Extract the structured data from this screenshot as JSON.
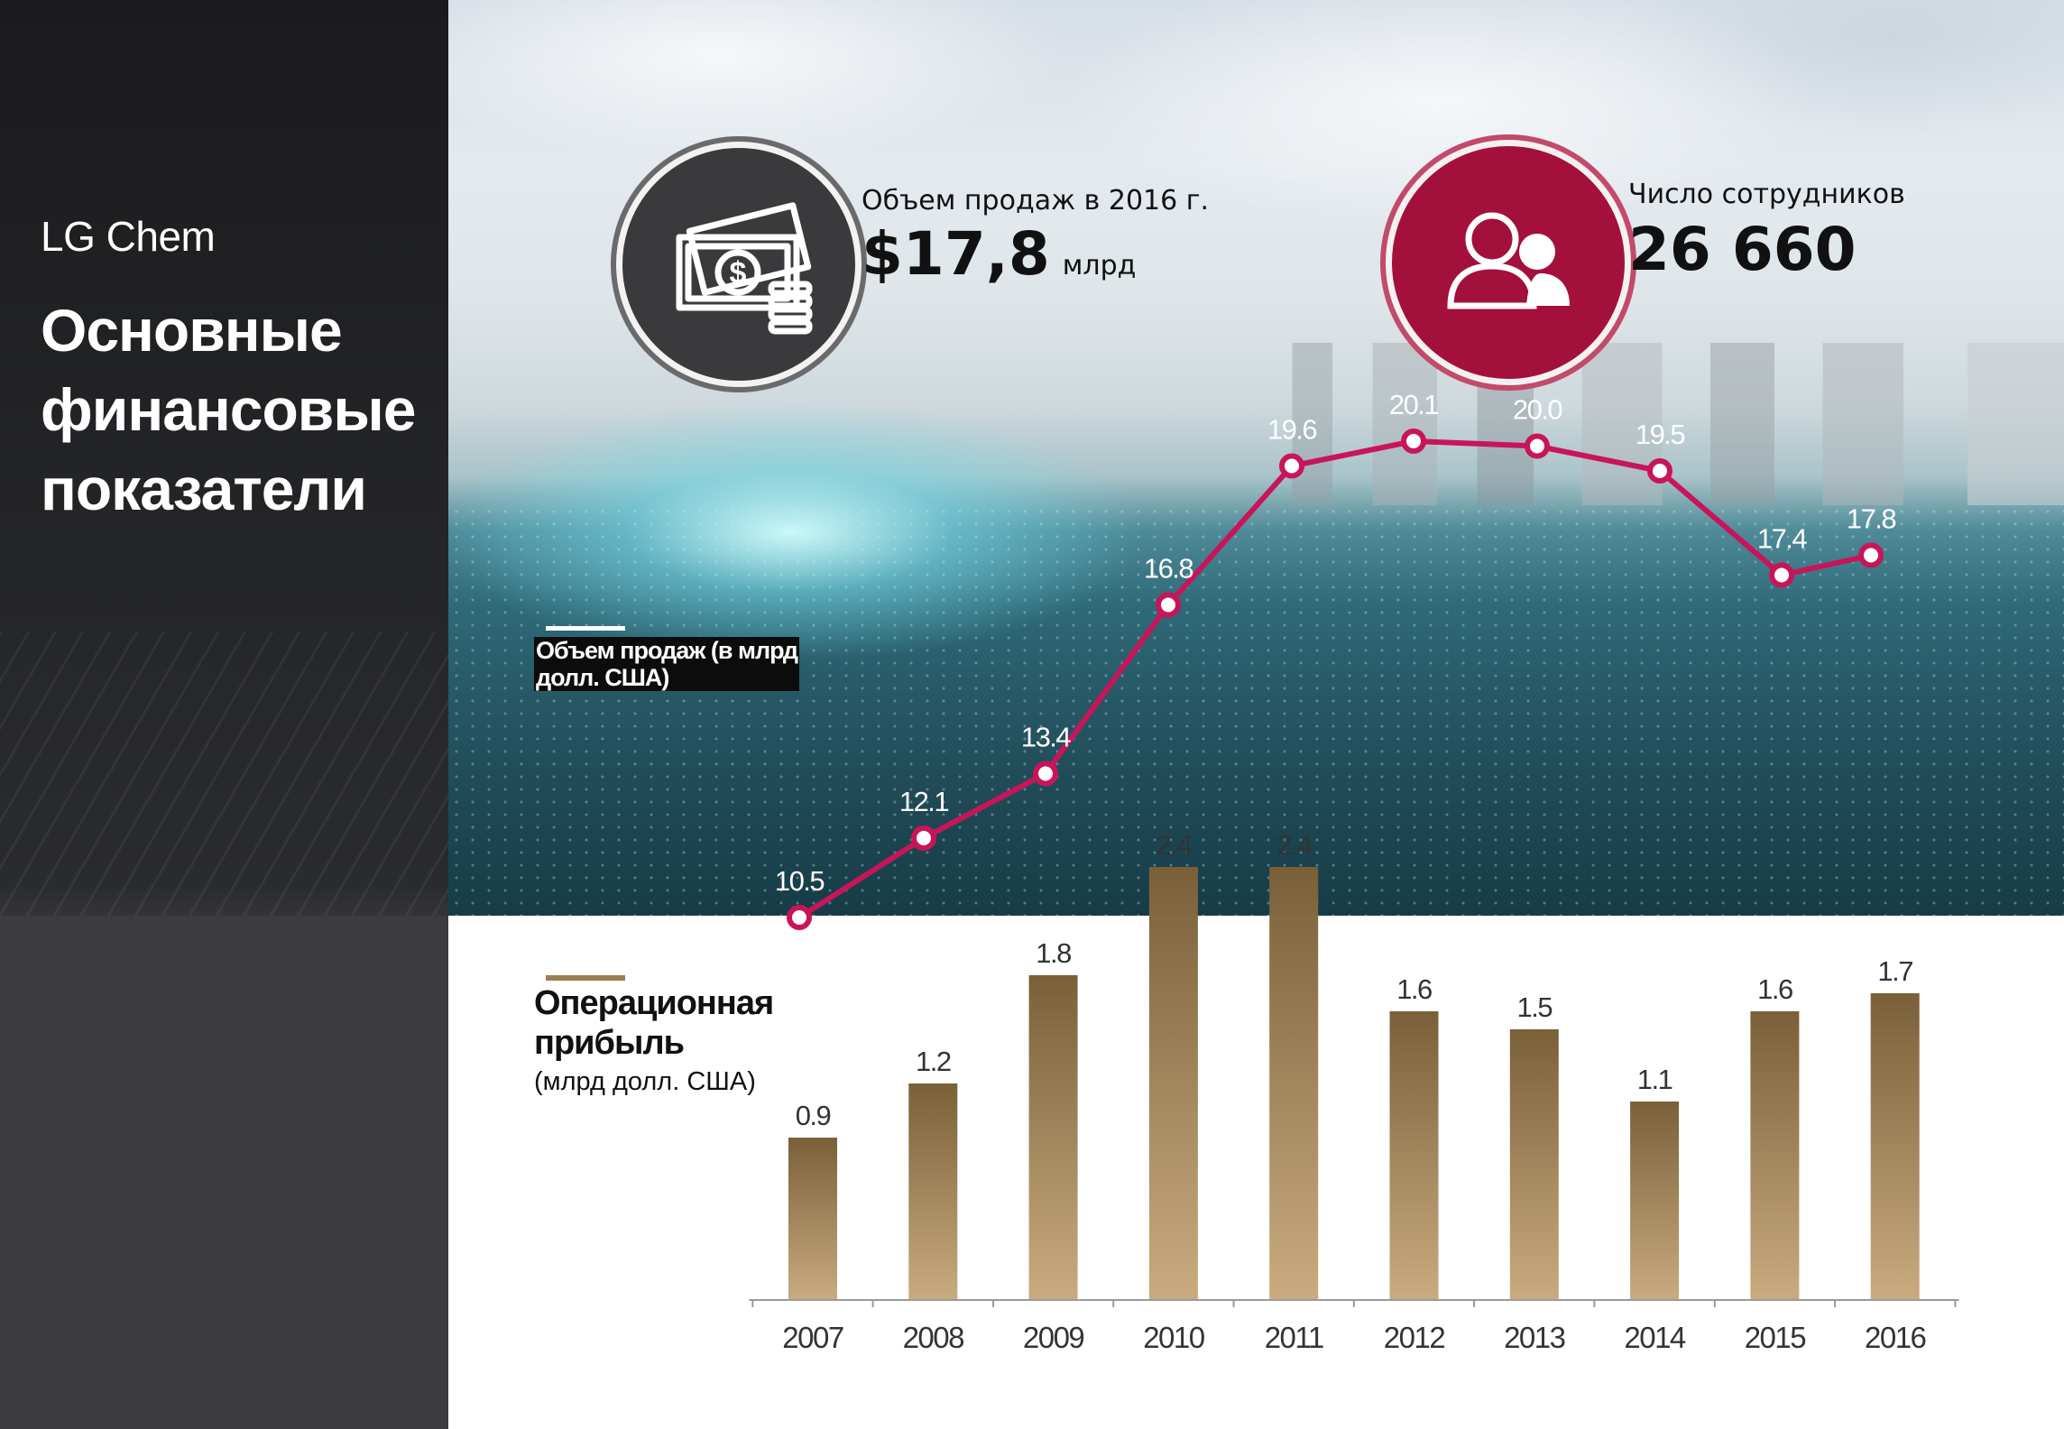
{
  "brand": "LG Chem",
  "page_title": [
    "Основные",
    "финансовые",
    "показатели"
  ],
  "kpis": {
    "sales": {
      "label": "Объем продаж в 2016 г.",
      "value": "$17,8",
      "unit": "млрд",
      "icon": "money-icon",
      "color": "#3a3a3c"
    },
    "employees": {
      "label": "Число сотрудников",
      "value": "26 660",
      "icon": "people-icon",
      "color": "#a4103c"
    }
  },
  "legend": {
    "sales_line": [
      "Объем продаж (в млрд",
      "долл. США)"
    ],
    "profit_title": [
      "Операционная",
      "прибыль"
    ],
    "profit_unit": "(млрд долл. США)"
  },
  "colors": {
    "line": "#c8155a",
    "bar_top": "#7a6039",
    "bar_bottom": "#c9ab7f"
  },
  "chart_data": {
    "type": "bar",
    "categories": [
      "2007",
      "2008",
      "2009",
      "2010",
      "2011",
      "2012",
      "2013",
      "2014",
      "2015",
      "2016"
    ],
    "series": [
      {
        "type": "line",
        "values": [
          10.5,
          12.1,
          13.4,
          16.8,
          19.6,
          20.1,
          20.0,
          19.5,
          17.4,
          17.8
        ],
        "labels": [
          "10.5",
          "12.1",
          "13.4",
          "16.8",
          "19.6",
          "20.1",
          "20.0",
          "19.5",
          "17.4",
          "17.8"
        ]
      },
      {
        "type": "bar",
        "values": [
          0.9,
          1.2,
          1.8,
          2.4,
          2.4,
          1.6,
          1.5,
          1.1,
          1.6,
          1.7
        ],
        "labels": [
          "0.9",
          "1.2",
          "1.8",
          "2.4",
          "2.4",
          "1.6",
          "1.5",
          "1.1",
          "1.6",
          "1.7"
        ]
      }
    ],
    "legend": "left",
    "grid": false
  }
}
